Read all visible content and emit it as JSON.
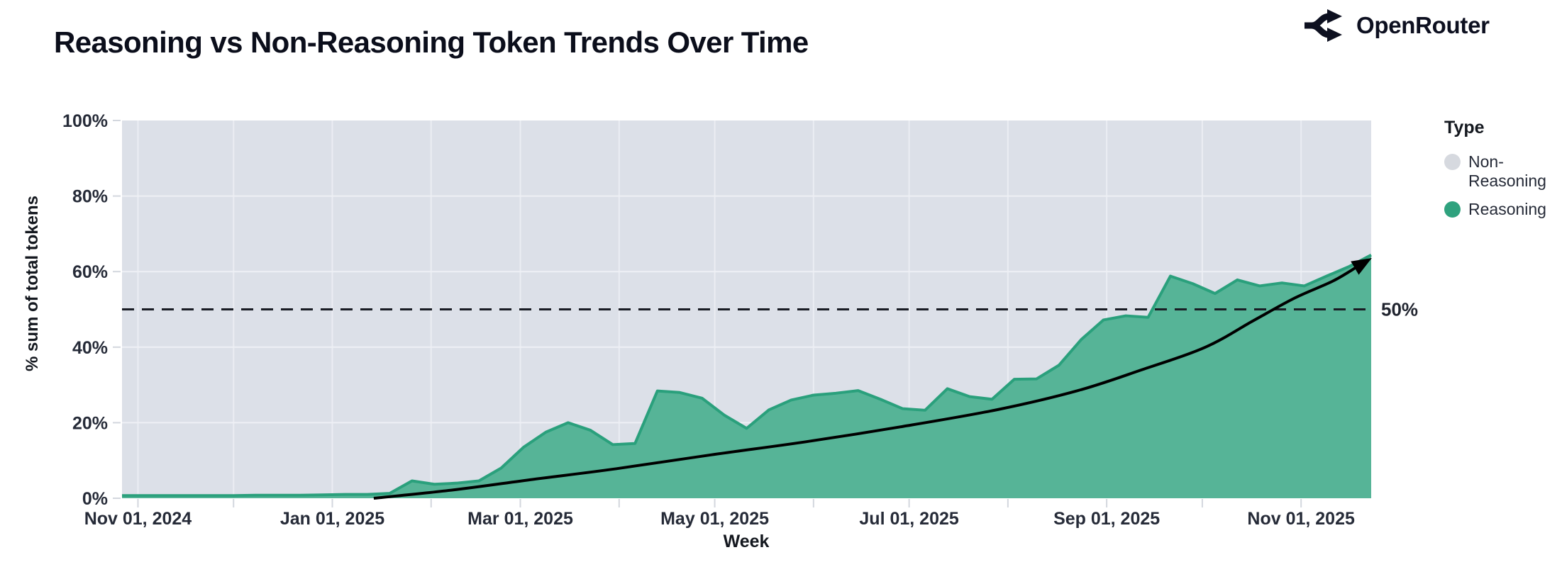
{
  "header": {
    "title": "Reasoning vs Non-Reasoning Token Trends Over Time",
    "brand": {
      "name": "OpenRouter",
      "icon": "openrouter-split-arrows-icon"
    }
  },
  "colors": {
    "plot_background": "#dce0e8",
    "gridline": "#eef0f5",
    "tick_mark": "#d3d7de",
    "area_fill": "#56b497",
    "area_stroke": "#2aa07c",
    "non_reasoning_swatch": "#d6d9df",
    "reasoning_swatch": "#2fa27e",
    "dashed_line": "#191c24",
    "trend_arrow": "#000000",
    "text_dark": "#262b38"
  },
  "chart_data": {
    "type": "area",
    "variant": "100-percent-stacked",
    "title": "Reasoning vs Non-Reasoning Token Trends Over Time",
    "xlabel": "Week",
    "ylabel": "% sum of total tokens",
    "grid": true,
    "ylim": [
      0,
      100
    ],
    "x_range": [
      "2024-10-27",
      "2025-11-23"
    ],
    "y_ticks": [
      {
        "value": 0,
        "label": "0%"
      },
      {
        "value": 20,
        "label": "20%"
      },
      {
        "value": 40,
        "label": "40%"
      },
      {
        "value": 60,
        "label": "60%"
      },
      {
        "value": 80,
        "label": "80%"
      },
      {
        "value": 100,
        "label": "100%"
      }
    ],
    "x_ticks_labeled": [
      {
        "date": "2024-11-01",
        "label": "Nov 01, 2024"
      },
      {
        "date": "2025-01-01",
        "label": "Jan 01, 2025"
      },
      {
        "date": "2025-03-01",
        "label": "Mar 01, 2025"
      },
      {
        "date": "2025-05-01",
        "label": "May 01, 2025"
      },
      {
        "date": "2025-07-01",
        "label": "Jul 01, 2025"
      },
      {
        "date": "2025-09-01",
        "label": "Sep 01, 2025"
      },
      {
        "date": "2025-11-01",
        "label": "Nov 01, 2025"
      }
    ],
    "x_ticks_minor": [
      "2024-11-01",
      "2024-12-01",
      "2025-01-01",
      "2025-02-01",
      "2025-03-01",
      "2025-04-01",
      "2025-05-01",
      "2025-06-01",
      "2025-07-01",
      "2025-08-01",
      "2025-09-01",
      "2025-10-01",
      "2025-11-01"
    ],
    "legend": {
      "title": "Type",
      "position": "right",
      "items": [
        {
          "label": "Non-Reasoning",
          "color": "#d6d9df"
        },
        {
          "label": "Reasoning",
          "color": "#2fa27e"
        }
      ]
    },
    "series": [
      {
        "name": "Reasoning",
        "unit": "% of total tokens per week",
        "points": [
          [
            "2024-10-27",
            0.7
          ],
          [
            "2024-11-03",
            0.7
          ],
          [
            "2024-11-10",
            0.7
          ],
          [
            "2024-11-17",
            0.7
          ],
          [
            "2024-11-24",
            0.7
          ],
          [
            "2024-12-01",
            0.7
          ],
          [
            "2024-12-08",
            0.8
          ],
          [
            "2024-12-15",
            0.8
          ],
          [
            "2024-12-22",
            0.8
          ],
          [
            "2024-12-29",
            0.9
          ],
          [
            "2025-01-05",
            1.0
          ],
          [
            "2025-01-12",
            1.0
          ],
          [
            "2025-01-19",
            1.3
          ],
          [
            "2025-01-26",
            4.6
          ],
          [
            "2025-02-02",
            3.7
          ],
          [
            "2025-02-09",
            4.0
          ],
          [
            "2025-02-16",
            4.6
          ],
          [
            "2025-02-23",
            8.0
          ],
          [
            "2025-03-02",
            13.5
          ],
          [
            "2025-03-09",
            17.5
          ],
          [
            "2025-03-16",
            20.0
          ],
          [
            "2025-03-23",
            18.0
          ],
          [
            "2025-03-30",
            14.2
          ],
          [
            "2025-04-06",
            14.5
          ],
          [
            "2025-04-13",
            28.4
          ],
          [
            "2025-04-20",
            28.0
          ],
          [
            "2025-04-27",
            26.5
          ],
          [
            "2025-05-04",
            22.0
          ],
          [
            "2025-05-11",
            18.5
          ],
          [
            "2025-05-18",
            23.4
          ],
          [
            "2025-05-25",
            26.0
          ],
          [
            "2025-06-01",
            27.3
          ],
          [
            "2025-06-08",
            27.8
          ],
          [
            "2025-06-15",
            28.5
          ],
          [
            "2025-06-22",
            26.2
          ],
          [
            "2025-06-29",
            23.7
          ],
          [
            "2025-07-06",
            23.3
          ],
          [
            "2025-07-13",
            29.0
          ],
          [
            "2025-07-20",
            26.9
          ],
          [
            "2025-07-27",
            26.2
          ],
          [
            "2025-08-03",
            31.5
          ],
          [
            "2025-08-10",
            31.6
          ],
          [
            "2025-08-17",
            35.2
          ],
          [
            "2025-08-24",
            42.0
          ],
          [
            "2025-08-31",
            47.2
          ],
          [
            "2025-09-07",
            48.3
          ],
          [
            "2025-09-14",
            47.9
          ],
          [
            "2025-09-21",
            58.8
          ],
          [
            "2025-09-28",
            56.8
          ],
          [
            "2025-10-05",
            54.2
          ],
          [
            "2025-10-12",
            57.8
          ],
          [
            "2025-10-19",
            56.2
          ],
          [
            "2025-10-26",
            57.0
          ],
          [
            "2025-11-02",
            56.2
          ],
          [
            "2025-11-09",
            58.8
          ],
          [
            "2025-11-16",
            61.3
          ],
          [
            "2025-11-23",
            64.4
          ]
        ]
      },
      {
        "name": "Non-Reasoning",
        "remainder_to_100_percent": true
      }
    ],
    "annotations": {
      "dashed_line": {
        "y": 50,
        "label": "50%"
      },
      "trend_arrow": {
        "style": "black curve with arrowhead",
        "points": [
          [
            "2025-01-14",
            0
          ],
          [
            "2025-02-08",
            2.2
          ],
          [
            "2025-03-05",
            5.0
          ],
          [
            "2025-03-31",
            7.8
          ],
          [
            "2025-04-30",
            11.5
          ],
          [
            "2025-05-30",
            15.0
          ],
          [
            "2025-06-29",
            19.0
          ],
          [
            "2025-07-29",
            23.5
          ],
          [
            "2025-08-23",
            28.5
          ],
          [
            "2025-09-12",
            34.0
          ],
          [
            "2025-10-02",
            40.0
          ],
          [
            "2025-10-17",
            47.0
          ],
          [
            "2025-10-30",
            53.0
          ],
          [
            "2025-11-11",
            57.5
          ],
          [
            "2025-11-19",
            61.5
          ]
        ]
      }
    }
  }
}
